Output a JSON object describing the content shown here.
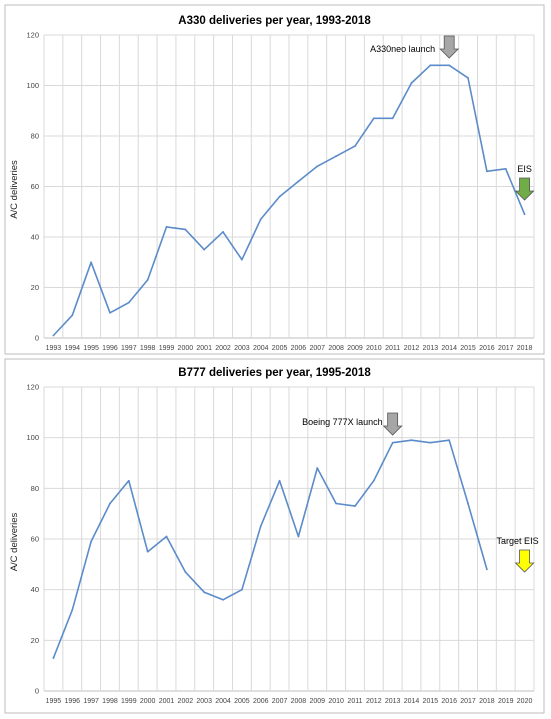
{
  "chart_data": [
    {
      "type": "line",
      "title": "A330 deliveries per year, 1993-2018",
      "xlabel": "",
      "ylabel": "A/C deliveries",
      "ylim": [
        0,
        120
      ],
      "yticks": [
        0,
        20,
        40,
        60,
        80,
        100,
        120
      ],
      "categories": [
        "1993",
        "1994",
        "1995",
        "1996",
        "1997",
        "1998",
        "1999",
        "2000",
        "2001",
        "2002",
        "2003",
        "2004",
        "2005",
        "2006",
        "2007",
        "2008",
        "2009",
        "2010",
        "2011",
        "2012",
        "2013",
        "2014",
        "2015",
        "2016",
        "2017",
        "2018"
      ],
      "series": [
        {
          "values": [
            1,
            9,
            30,
            10,
            14,
            23,
            44,
            43,
            35,
            42,
            31,
            47,
            56,
            62,
            68,
            72,
            76,
            87,
            87,
            101,
            108,
            108,
            103,
            66,
            67,
            49
          ]
        }
      ],
      "grid": true,
      "legend": "none",
      "line_color": "#5b8cc9",
      "annotations": [
        {
          "text": "A330neo launch",
          "category": "2014",
          "marker": "arrow",
          "color": "#a6a6a6"
        },
        {
          "text": "EIS",
          "category": "2018",
          "marker": "arrow",
          "color": "#70ad47"
        }
      ]
    },
    {
      "type": "line",
      "title": "B777 deliveries per year, 1995-2018",
      "xlabel": "",
      "ylabel": "A/C deliveries",
      "ylim": [
        0,
        120
      ],
      "yticks": [
        0,
        20,
        40,
        60,
        80,
        100,
        120
      ],
      "categories": [
        "1995",
        "1996",
        "1997",
        "1998",
        "1999",
        "2000",
        "2001",
        "2002",
        "2003",
        "2004",
        "2005",
        "2006",
        "2007",
        "2008",
        "2009",
        "2010",
        "2011",
        "2012",
        "2013",
        "2014",
        "2015",
        "2016",
        "2017",
        "2018",
        "2019",
        "2020"
      ],
      "series": [
        {
          "values": [
            13,
            32,
            59,
            74,
            83,
            55,
            61,
            47,
            39,
            36,
            40,
            65,
            83,
            61,
            88,
            74,
            73,
            83,
            98,
            99,
            98,
            99,
            74,
            48,
            null,
            null
          ]
        }
      ],
      "grid": true,
      "legend": "none",
      "line_color": "#5b8cc9",
      "annotations": [
        {
          "text": "Boeing 777X launch",
          "category": "2013",
          "marker": "arrow",
          "color": "#a6a6a6"
        },
        {
          "text": "Target EIS",
          "category": "2020",
          "marker": "arrow",
          "color": "#ffff00"
        }
      ]
    }
  ]
}
